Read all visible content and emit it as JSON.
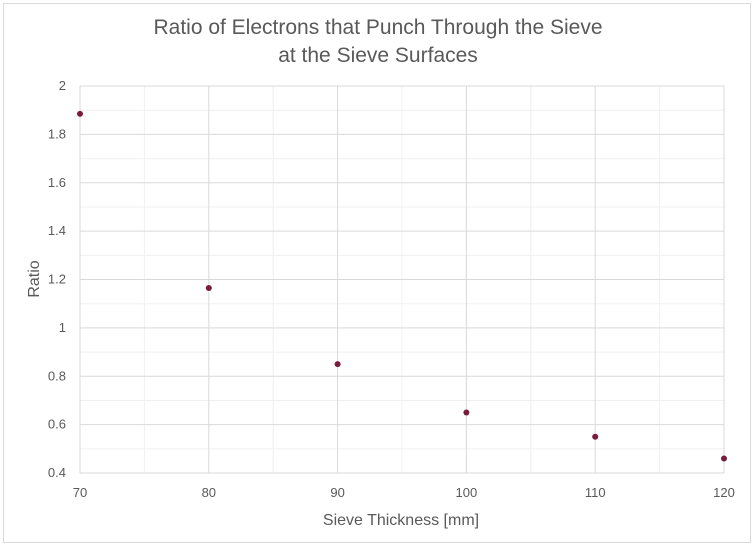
{
  "chart_data": {
    "type": "scatter",
    "title_lines": [
      "Ratio of Electrons that Punch Through the Sieve",
      "at the Sieve Surfaces"
    ],
    "xlabel": "Sieve Thickness [mm]",
    "ylabel": "Ratio",
    "xlim": [
      70,
      120
    ],
    "ylim": [
      0.4,
      2
    ],
    "xticks": [
      70,
      80,
      90,
      100,
      110,
      120
    ],
    "yticks": [
      0.4,
      0.6,
      0.8,
      1,
      1.2,
      1.4,
      1.6,
      1.8,
      2
    ],
    "grid": {
      "major": true,
      "minor": true
    },
    "marker_color": "#7b1a3a",
    "series": [
      {
        "x": [
          70,
          80,
          90,
          100,
          110,
          120
        ],
        "y": [
          1.885,
          1.165,
          0.85,
          0.65,
          0.55,
          0.46
        ]
      }
    ]
  }
}
